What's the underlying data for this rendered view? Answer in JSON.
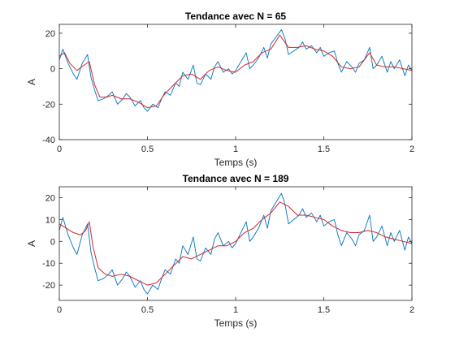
{
  "chart_data": [
    {
      "type": "line",
      "title": "Tendance avec N = 65",
      "xlabel": "Temps (s)",
      "ylabel": "A",
      "xlim": [
        0,
        2
      ],
      "ylim": [
        -40,
        25
      ],
      "xticks": [
        0,
        0.5,
        1,
        1.5,
        2
      ],
      "xtick_labels": [
        "0",
        "0.5",
        "1",
        "1.5",
        "2"
      ],
      "yticks": [
        -40,
        -20,
        0,
        20
      ],
      "ytick_labels": [
        "-40",
        "-20",
        "0",
        "20"
      ],
      "grid": false,
      "legend": "none",
      "series": [
        {
          "role": "signal",
          "color": "#0072BD",
          "x": [
            0,
            0.02,
            0.05,
            0.08,
            0.1,
            0.13,
            0.16,
            0.18,
            0.2,
            0.22,
            0.25,
            0.28,
            0.3,
            0.33,
            0.36,
            0.38,
            0.4,
            0.43,
            0.46,
            0.48,
            0.5,
            0.53,
            0.56,
            0.58,
            0.6,
            0.63,
            0.66,
            0.68,
            0.7,
            0.73,
            0.76,
            0.78,
            0.8,
            0.83,
            0.86,
            0.88,
            0.9,
            0.93,
            0.96,
            0.98,
            1,
            1.03,
            1.06,
            1.08,
            1.1,
            1.13,
            1.16,
            1.18,
            1.2,
            1.23,
            1.26,
            1.28,
            1.3,
            1.33,
            1.36,
            1.38,
            1.4,
            1.43,
            1.46,
            1.48,
            1.5,
            1.53,
            1.56,
            1.58,
            1.6,
            1.63,
            1.66,
            1.68,
            1.7,
            1.73,
            1.76,
            1.78,
            1.8,
            1.83,
            1.86,
            1.88,
            1.9,
            1.93,
            1.96,
            1.98,
            2
          ],
          "y": [
            5,
            11,
            3,
            -3,
            -6,
            3,
            8,
            -5,
            -12,
            -18,
            -17,
            -15,
            -13,
            -20,
            -17,
            -14,
            -16,
            -21,
            -18,
            -22,
            -24,
            -20,
            -22,
            -17,
            -13,
            -15,
            -8,
            -10,
            -2,
            -6,
            2,
            -8,
            -9,
            -3,
            -6,
            1,
            4,
            -2,
            0,
            -3,
            -1,
            4,
            9,
            0,
            2,
            6,
            12,
            6,
            14,
            18,
            22,
            17,
            8,
            10,
            12,
            15,
            11,
            13,
            9,
            12,
            7,
            9,
            10,
            3,
            -2,
            4,
            1,
            -2,
            3,
            5,
            12,
            0,
            2,
            7,
            -2,
            4,
            0,
            5,
            -4,
            2,
            -1
          ]
        },
        {
          "role": "trend",
          "color": "#D62728",
          "x": [
            0,
            0.03,
            0.06,
            0.1,
            0.14,
            0.17,
            0.2,
            0.23,
            0.27,
            0.3,
            0.35,
            0.4,
            0.45,
            0.5,
            0.55,
            0.6,
            0.65,
            0.7,
            0.75,
            0.8,
            0.85,
            0.9,
            0.95,
            1,
            1.05,
            1.1,
            1.15,
            1.2,
            1.25,
            1.3,
            1.35,
            1.4,
            1.45,
            1.5,
            1.55,
            1.6,
            1.65,
            1.7,
            1.76,
            1.8,
            1.85,
            1.9,
            1.95,
            2
          ],
          "y": [
            7,
            9,
            3,
            -1,
            2,
            4,
            -9,
            -16,
            -16,
            -15,
            -17,
            -17,
            -19,
            -22,
            -21,
            -14,
            -9,
            -4,
            -3,
            -6,
            -1,
            1,
            -1,
            -2,
            2,
            4,
            9,
            11,
            19,
            12,
            12,
            13,
            11,
            10,
            7,
            1,
            0,
            1,
            9,
            2,
            1,
            1,
            0,
            -1
          ]
        }
      ]
    },
    {
      "type": "line",
      "title": "Tendance avec N = 189",
      "xlabel": "Temps (s)",
      "ylabel": "A",
      "xlim": [
        0,
        2
      ],
      "ylim": [
        -27,
        25
      ],
      "xticks": [
        0,
        0.5,
        1,
        1.5,
        2
      ],
      "xtick_labels": [
        "0",
        "0.5",
        "1",
        "1.5",
        "2"
      ],
      "yticks": [
        -20,
        -10,
        0,
        10,
        20
      ],
      "ytick_labels": [
        "-20",
        "-10",
        "0",
        "10",
        "20"
      ],
      "grid": false,
      "legend": "none",
      "series": [
        {
          "role": "signal",
          "color": "#0072BD",
          "x": [
            0,
            0.02,
            0.05,
            0.08,
            0.1,
            0.13,
            0.16,
            0.18,
            0.2,
            0.22,
            0.25,
            0.28,
            0.3,
            0.33,
            0.36,
            0.38,
            0.4,
            0.43,
            0.46,
            0.48,
            0.5,
            0.53,
            0.56,
            0.58,
            0.6,
            0.63,
            0.66,
            0.68,
            0.7,
            0.73,
            0.76,
            0.78,
            0.8,
            0.83,
            0.86,
            0.88,
            0.9,
            0.93,
            0.96,
            0.98,
            1,
            1.03,
            1.06,
            1.08,
            1.1,
            1.13,
            1.16,
            1.18,
            1.2,
            1.23,
            1.26,
            1.28,
            1.3,
            1.33,
            1.36,
            1.38,
            1.4,
            1.43,
            1.46,
            1.48,
            1.5,
            1.53,
            1.56,
            1.58,
            1.6,
            1.63,
            1.66,
            1.68,
            1.7,
            1.73,
            1.76,
            1.78,
            1.8,
            1.83,
            1.86,
            1.88,
            1.9,
            1.93,
            1.96,
            1.98,
            2
          ],
          "y": [
            5,
            11,
            3,
            -3,
            -6,
            3,
            8,
            -5,
            -12,
            -18,
            -17,
            -15,
            -13,
            -20,
            -17,
            -14,
            -16,
            -21,
            -18,
            -22,
            -24,
            -20,
            -22,
            -17,
            -13,
            -15,
            -8,
            -10,
            -2,
            -6,
            2,
            -8,
            -9,
            -3,
            -6,
            1,
            4,
            -2,
            0,
            -3,
            -1,
            4,
            9,
            0,
            2,
            6,
            12,
            6,
            14,
            18,
            22,
            17,
            8,
            10,
            12,
            15,
            11,
            13,
            9,
            12,
            7,
            9,
            10,
            3,
            -2,
            4,
            1,
            -2,
            3,
            5,
            12,
            0,
            2,
            7,
            -2,
            4,
            0,
            5,
            -4,
            2,
            -1
          ]
        },
        {
          "role": "trend",
          "color": "#D62728",
          "x": [
            0,
            0.04,
            0.08,
            0.12,
            0.15,
            0.17,
            0.19,
            0.22,
            0.26,
            0.3,
            0.35,
            0.4,
            0.45,
            0.5,
            0.55,
            0.6,
            0.65,
            0.7,
            0.75,
            0.8,
            0.85,
            0.9,
            0.95,
            1,
            1.05,
            1.1,
            1.15,
            1.2,
            1.25,
            1.3,
            1.35,
            1.4,
            1.45,
            1.5,
            1.55,
            1.6,
            1.65,
            1.7,
            1.75,
            1.8,
            1.85,
            1.9,
            1.95,
            2
          ],
          "y": [
            8,
            6,
            4,
            3,
            5,
            9,
            -2,
            -12,
            -15,
            -16,
            -15,
            -16,
            -18,
            -20,
            -19,
            -15,
            -11,
            -7,
            -8,
            -6,
            -4,
            -2,
            -2,
            0,
            4,
            6,
            10,
            13,
            18,
            16,
            12,
            12,
            11,
            10,
            7,
            5,
            4,
            4,
            5,
            4,
            2,
            1,
            0,
            -1
          ]
        }
      ]
    }
  ]
}
